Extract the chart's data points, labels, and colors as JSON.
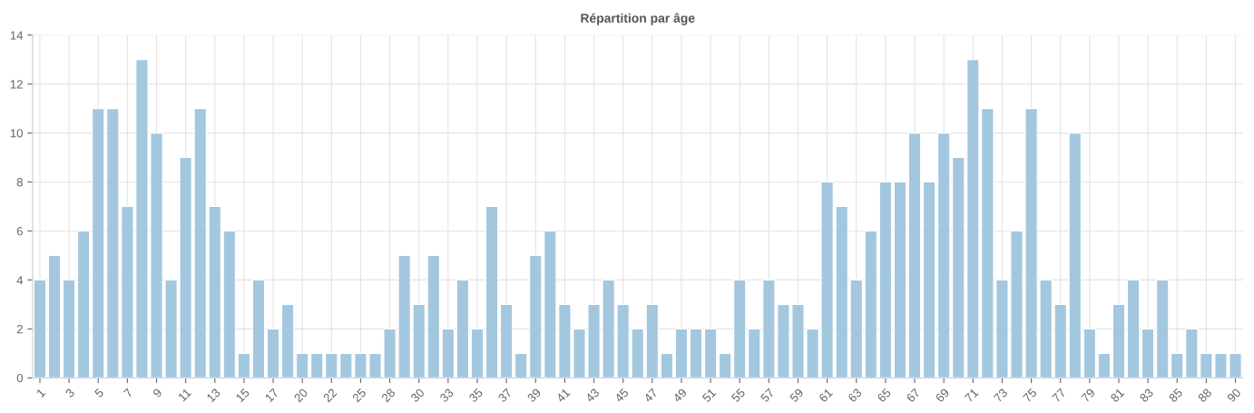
{
  "chart_data": {
    "type": "bar",
    "title": "Répartition par âge",
    "categories": [
      "1",
      null,
      "3",
      null,
      "5",
      null,
      "7",
      null,
      "9",
      null,
      "11",
      null,
      "13",
      null,
      "15",
      null,
      "17",
      null,
      "20",
      null,
      "22",
      null,
      "25",
      null,
      "28",
      null,
      "30",
      null,
      "33",
      null,
      "35",
      null,
      "37",
      null,
      "39",
      null,
      "41",
      null,
      "43",
      null,
      "45",
      null,
      "47",
      null,
      "49",
      null,
      "51",
      null,
      "55",
      null,
      "57",
      null,
      "59",
      null,
      "61",
      null,
      "63",
      null,
      "65",
      null,
      "67",
      null,
      "69",
      null,
      "71",
      null,
      "73",
      null,
      "75",
      null,
      "77",
      null,
      "79",
      null,
      "81",
      null,
      "83",
      null,
      "85",
      null,
      "88",
      null,
      "90"
    ],
    "values": [
      4,
      5,
      4,
      6,
      11,
      11,
      7,
      13,
      10,
      4,
      9,
      11,
      7,
      6,
      1,
      4,
      2,
      3,
      1,
      1,
      1,
      1,
      1,
      1,
      2,
      5,
      3,
      5,
      2,
      4,
      2,
      7,
      3,
      1,
      5,
      6,
      3,
      2,
      3,
      4,
      3,
      2,
      3,
      1,
      2,
      2,
      2,
      1,
      4,
      2,
      4,
      3,
      3,
      2,
      8,
      7,
      4,
      6,
      8,
      8,
      10,
      8,
      10,
      9,
      13,
      11,
      4,
      6,
      11,
      4,
      3,
      10,
      2,
      1,
      3,
      4,
      2,
      4,
      1,
      2,
      1,
      1,
      1
    ],
    "color": "#9fc5de",
    "ylim": [
      0,
      14
    ],
    "yticks": [
      0,
      2,
      4,
      6,
      8,
      10,
      12,
      14
    ],
    "grid": true
  }
}
